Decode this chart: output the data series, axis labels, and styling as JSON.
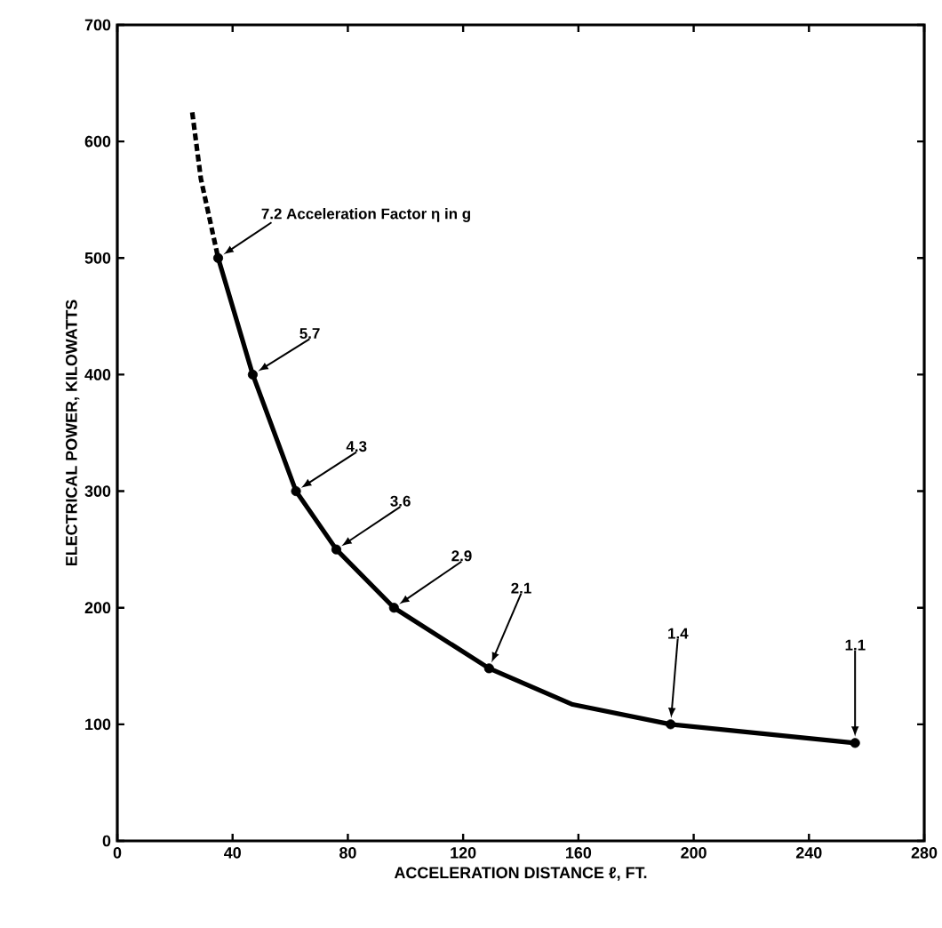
{
  "chart_data": {
    "type": "line",
    "xlabel": "ACCELERATION DISTANCE ℓ, FT.",
    "ylabel": "ELECTRICAL POWER, KILOWATTS",
    "xlim": [
      0,
      280
    ],
    "ylim": [
      0,
      700
    ],
    "xticks": [
      0,
      40,
      80,
      120,
      160,
      200,
      240,
      280
    ],
    "yticks": [
      0,
      100,
      200,
      300,
      400,
      500,
      600,
      700
    ],
    "grid": false,
    "series": [
      {
        "line_style": "dashed",
        "marker": "none",
        "color": "#000000",
        "x": [
          26,
          29,
          35
        ],
        "values": [
          625,
          568,
          500
        ]
      },
      {
        "line_style": "solid",
        "marker": "none",
        "color": "#000000",
        "x": [
          35,
          47,
          62,
          76,
          96,
          129,
          158,
          192,
          256
        ],
        "values": [
          500,
          400,
          300,
          250,
          200,
          148,
          117,
          100,
          84
        ]
      },
      {
        "type": "scatter",
        "marker": "circle",
        "color": "#000000",
        "x": [
          35,
          47,
          62,
          76,
          96,
          129,
          192,
          256
        ],
        "values": [
          500,
          400,
          300,
          250,
          200,
          148,
          100,
          84
        ]
      }
    ],
    "annotations": [
      {
        "text": "7.2 Acceleration Factor η in g",
        "x": 35,
        "y": 500
      },
      {
        "text": "5.7",
        "x": 47,
        "y": 400
      },
      {
        "text": "4.3",
        "x": 62,
        "y": 300
      },
      {
        "text": "3.6",
        "x": 76,
        "y": 250
      },
      {
        "text": "2.9",
        "x": 96,
        "y": 200
      },
      {
        "text": "2.1",
        "x": 129,
        "y": 148
      },
      {
        "text": "1.4",
        "x": 192,
        "y": 100
      },
      {
        "text": "1.1",
        "x": 256,
        "y": 84
      }
    ]
  }
}
